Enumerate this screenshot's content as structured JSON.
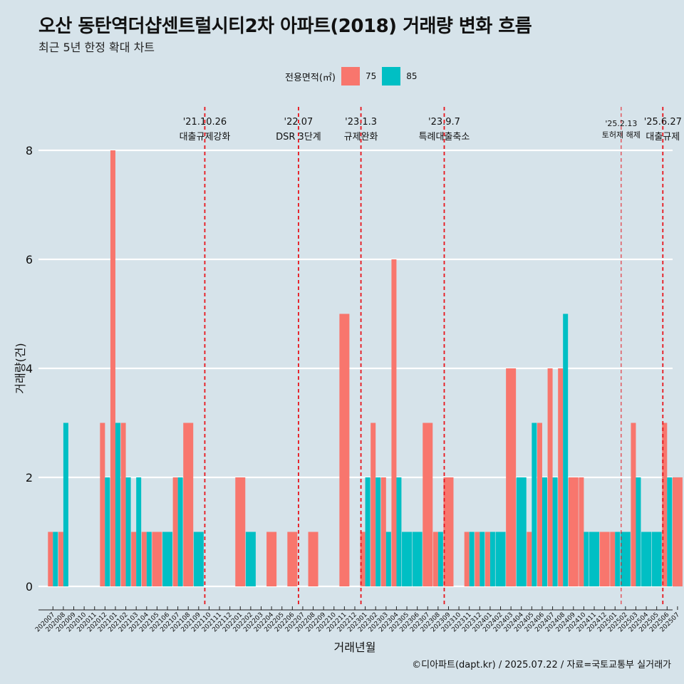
{
  "chart_data": {
    "type": "bar",
    "title": "오산 동탄역더샵센트럴시티2차 아파트(2018) 거래량 변화 흐름",
    "subtitle": "최근 5년 한정 확대 차트",
    "xlabel": "거래년월",
    "ylabel": "거래량(건)",
    "ylim": [
      0,
      8.3
    ],
    "yticks": [
      0,
      2,
      4,
      6,
      8
    ],
    "legend": {
      "title": "전용면적(㎡)",
      "entries": [
        {
          "name": "75",
          "color": "#f8766d"
        },
        {
          "name": "85",
          "color": "#00bfc4"
        }
      ]
    },
    "categories": [
      "202007",
      "202008",
      "202009",
      "202010",
      "202011",
      "202012",
      "202101",
      "202102",
      "202103",
      "202104",
      "202105",
      "202106",
      "202107",
      "202108",
      "202109",
      "202110",
      "202111",
      "202112",
      "202201",
      "202202",
      "202203",
      "202204",
      "202205",
      "202206",
      "202207",
      "202208",
      "202209",
      "202210",
      "202211",
      "202212",
      "202301",
      "202302",
      "202303",
      "202304",
      "202305",
      "202306",
      "202307",
      "202308",
      "202309",
      "202310",
      "202311",
      "202312",
      "202401",
      "202402",
      "202403",
      "202404",
      "202405",
      "202406",
      "202407",
      "202408",
      "202409",
      "202410",
      "202411",
      "202412",
      "202501",
      "202502",
      "202503",
      "202504",
      "202505",
      "202506",
      "202507"
    ],
    "series": [
      {
        "name": "75",
        "color": "#f8766d",
        "values": [
          1,
          1,
          0,
          0,
          0,
          3,
          8,
          3,
          1,
          1,
          1,
          0,
          2,
          3,
          0,
          0,
          0,
          0,
          2,
          0,
          0,
          1,
          0,
          1,
          0,
          1,
          0,
          0,
          5,
          0,
          1,
          3,
          2,
          6,
          0,
          0,
          3,
          1,
          2,
          0,
          1,
          1,
          1,
          0,
          4,
          0,
          1,
          3,
          4,
          4,
          2,
          2,
          0,
          1,
          1,
          0,
          3,
          0,
          0,
          3,
          2
        ]
      },
      {
        "name": "85",
        "color": "#00bfc4",
        "values": [
          1,
          3,
          0,
          0,
          0,
          2,
          3,
          2,
          2,
          1,
          0,
          1,
          2,
          0,
          1,
          0,
          0,
          0,
          0,
          1,
          0,
          0,
          0,
          0,
          0,
          0,
          0,
          0,
          0,
          0,
          2,
          2,
          1,
          2,
          1,
          1,
          0,
          1,
          0,
          0,
          1,
          1,
          1,
          1,
          0,
          2,
          3,
          2,
          2,
          5,
          0,
          1,
          1,
          0,
          1,
          1,
          2,
          1,
          1,
          2,
          0
        ]
      }
    ],
    "events": [
      {
        "date": "'21.10.26",
        "label": "대출규제강화",
        "index": 15
      },
      {
        "date": "'22.07",
        "label": "DSR 3단계",
        "index": 24
      },
      {
        "date": "'23.1.3",
        "label": "규제완화",
        "index": 30
      },
      {
        "date": "'23.9.7",
        "label": "특례대출축소",
        "index": 38
      },
      {
        "date": "'25.2.13",
        "label": "토허제 해제",
        "index": 55
      },
      {
        "date": "'25.6.27",
        "label": "대출규제",
        "index": 59
      }
    ]
  },
  "caption": "©디아파트(dapt.kr) / 2025.07.22 / 자료=국토교통부 실거래가"
}
